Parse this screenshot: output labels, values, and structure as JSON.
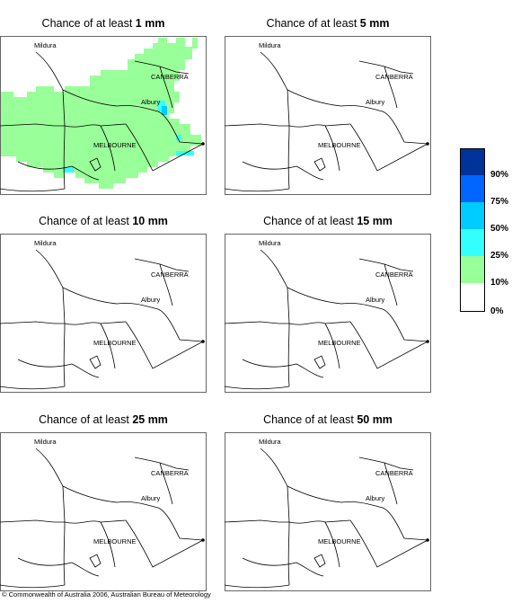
{
  "panels": [
    {
      "prefix": "Chance of at least ",
      "amount": "1 mm",
      "shaded": true
    },
    {
      "prefix": "Chance of at least ",
      "amount": "5 mm",
      "shaded": false
    },
    {
      "prefix": "Chance of at least ",
      "amount": "10 mm",
      "shaded": false
    },
    {
      "prefix": "Chance of at least ",
      "amount": "15 mm",
      "shaded": false
    },
    {
      "prefix": "Chance of at least ",
      "amount": "25 mm",
      "shaded": false
    },
    {
      "prefix": "Chance of at least ",
      "amount": "50 mm",
      "shaded": false
    }
  ],
  "places": {
    "mildura": "Mildura",
    "canberra": "CANBERRA",
    "albury": "Albury",
    "melbourne": "MELBOURNE"
  },
  "legend": {
    "classes": [
      {
        "color": "#003399",
        "label": ""
      },
      {
        "color": "#0066ff",
        "label": "90%"
      },
      {
        "color": "#00ccff",
        "label": "75%"
      },
      {
        "color": "#33ffff",
        "label": "50%"
      },
      {
        "color": "#99ff99",
        "label": "25%"
      },
      {
        "color": "#ffffff",
        "label": "10%"
      }
    ],
    "bottom_label": "0%"
  },
  "copyright": "© Commonwealth of Australia 2006, Australian Bureau of Meteorology"
}
